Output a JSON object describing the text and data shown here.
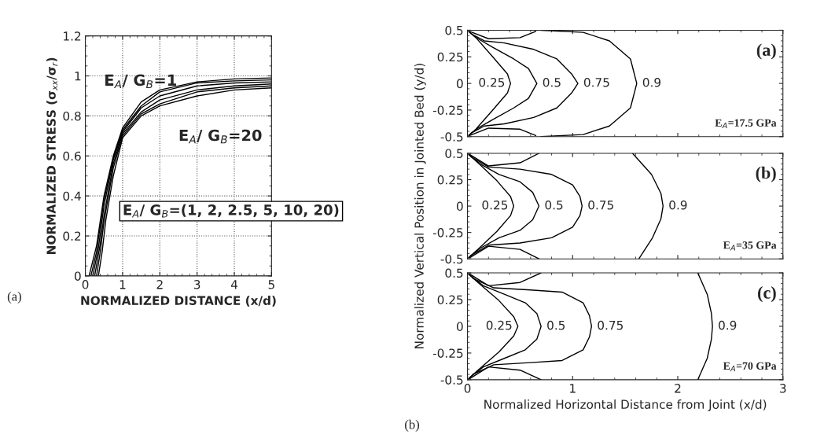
{
  "chart_data": [
    {
      "type": "line",
      "xlabel": "NORMALIZED DISTANCE (x/d)",
      "ylabel": "NORMALIZED STRESS (σ$_{xx}$/σ$_{r}$)",
      "xlim": [
        0,
        5
      ],
      "ylim": [
        0,
        1.2
      ],
      "xticks": [
        0,
        1,
        2,
        3,
        4,
        5
      ],
      "yticks": [
        0,
        0.2,
        0.4,
        0.6,
        0.8,
        1,
        1.2
      ],
      "grid": true,
      "legend": false,
      "annotations": [
        "E$_{A}$/ G$_{B}$=1",
        "E$_{A}$/ G$_{B}$=20",
        "E$_{A}$/ G$_{B}$=(1, 2, 2.5, 5, 10, 20)",
        "(a)"
      ],
      "series": [
        {
          "color": "#000000",
          "x": [
            0.1,
            0.3,
            0.5,
            0.75,
            1,
            1.5,
            2,
            3,
            4,
            5
          ],
          "values": [
            0,
            0.15,
            0.4,
            0.6,
            0.74,
            0.87,
            0.93,
            0.97,
            0.985,
            0.99
          ]
        },
        {
          "color": "#000000",
          "x": [
            0.15,
            0.3,
            0.5,
            0.75,
            1,
            1.5,
            2,
            3,
            4,
            5
          ],
          "values": [
            0,
            0.12,
            0.38,
            0.59,
            0.73,
            0.85,
            0.92,
            0.965,
            0.975,
            0.98
          ]
        },
        {
          "color": "#000000",
          "x": [
            0.2,
            0.35,
            0.5,
            0.75,
            1,
            1.5,
            2,
            3,
            4,
            5
          ],
          "values": [
            0,
            0.14,
            0.35,
            0.58,
            0.72,
            0.84,
            0.9,
            0.95,
            0.965,
            0.97
          ]
        },
        {
          "color": "#000000",
          "x": [
            0.25,
            0.4,
            0.5,
            0.75,
            1,
            1.5,
            2,
            3,
            4,
            5
          ],
          "values": [
            0,
            0.16,
            0.3,
            0.56,
            0.71,
            0.82,
            0.88,
            0.93,
            0.95,
            0.96
          ]
        },
        {
          "color": "#000000",
          "x": [
            0.3,
            0.4,
            0.5,
            0.75,
            1,
            1.5,
            2,
            3,
            4,
            5
          ],
          "values": [
            0,
            0.12,
            0.27,
            0.54,
            0.7,
            0.81,
            0.86,
            0.92,
            0.94,
            0.95
          ]
        },
        {
          "color": "#000000",
          "x": [
            0.35,
            0.45,
            0.55,
            0.75,
            1,
            1.5,
            2,
            3,
            4,
            5
          ],
          "values": [
            0,
            0.12,
            0.28,
            0.5,
            0.69,
            0.8,
            0.85,
            0.9,
            0.93,
            0.94
          ]
        }
      ]
    },
    {
      "type": "line",
      "xlim": [
        0,
        3
      ],
      "ylim": [
        -0.5,
        0.5
      ],
      "xticks": [
        0,
        1,
        2,
        3
      ],
      "yticks": [
        -0.5,
        -0.25,
        0,
        0.25,
        0.5
      ],
      "tick_labels": "y",
      "legend": false,
      "annotations": [
        "(a)",
        "E$_{A}$=17.5 GPa"
      ],
      "series": [
        {
          "name": "0.25",
          "color": "#000000",
          "x": [
            0.01,
            0.08,
            0.24,
            0.38,
            0.41,
            0.38,
            0.24,
            0.08,
            0.01
          ],
          "values": [
            0.49,
            0.43,
            0.25,
            0.09,
            0,
            -0.09,
            -0.25,
            -0.43,
            -0.49
          ]
        },
        {
          "name": "0.5",
          "color": "#000000",
          "x": [
            0.02,
            0.1,
            0.24,
            0.44,
            0.58,
            0.66,
            0.58,
            0.44,
            0.24,
            0.1,
            0.02
          ],
          "values": [
            0.48,
            0.42,
            0.34,
            0.23,
            0.14,
            0,
            -0.14,
            -0.23,
            -0.34,
            -0.42,
            -0.48
          ]
        },
        {
          "name": "0.75",
          "color": "#000000",
          "x": [
            0.03,
            0.16,
            0.35,
            0.63,
            0.85,
            0.99,
            1.05,
            0.99,
            0.85,
            0.63,
            0.35,
            0.16,
            0.03
          ],
          "values": [
            0.47,
            0.4,
            0.38,
            0.32,
            0.23,
            0.09,
            0,
            -0.09,
            -0.23,
            -0.32,
            -0.38,
            -0.4,
            -0.47
          ]
        },
        {
          "name": "0.9",
          "color": "#000000",
          "x": [
            0.7,
            1.1,
            1.35,
            1.55,
            1.61,
            1.55,
            1.35,
            1.1,
            0.7
          ],
          "values": [
            0.5,
            0.48,
            0.4,
            0.23,
            0,
            -0.23,
            -0.4,
            -0.48,
            -0.5
          ]
        },
        {
          "color": "#000000",
          "x": [
            0.02,
            0.2,
            0.5,
            0.65
          ],
          "values": [
            0.49,
            0.42,
            0.43,
            0.49
          ]
        },
        {
          "color": "#000000",
          "x": [
            0.02,
            0.2,
            0.5,
            0.65
          ],
          "values": [
            -0.49,
            -0.42,
            -0.43,
            -0.49
          ]
        }
      ]
    },
    {
      "type": "line",
      "xlim": [
        0,
        3
      ],
      "ylim": [
        -0.5,
        0.5
      ],
      "xticks": [
        0,
        1,
        2,
        3
      ],
      "yticks": [
        -0.5,
        -0.25,
        0,
        0.25,
        0.5
      ],
      "tick_labels": "y",
      "legend": false,
      "ylabel": "Normalized Vertical Position in Jointed Bed (y/d)",
      "annotations": [
        "(b)",
        "E$_{A}$=35 GPa"
      ],
      "series": [
        {
          "name": "0.25",
          "color": "#000000",
          "x": [
            0.01,
            0.1,
            0.28,
            0.41,
            0.44,
            0.41,
            0.28,
            0.1,
            0.01
          ],
          "values": [
            0.49,
            0.41,
            0.24,
            0.09,
            0,
            -0.09,
            -0.24,
            -0.41,
            -0.49
          ]
        },
        {
          "name": "0.5",
          "color": "#000000",
          "x": [
            0.02,
            0.12,
            0.3,
            0.5,
            0.62,
            0.68,
            0.62,
            0.5,
            0.3,
            0.12,
            0.02
          ],
          "values": [
            0.48,
            0.4,
            0.3,
            0.23,
            0.13,
            0,
            -0.13,
            -0.23,
            -0.3,
            -0.4,
            -0.48
          ]
        },
        {
          "name": "0.75",
          "color": "#000000",
          "x": [
            0.03,
            0.2,
            0.5,
            0.8,
            1.0,
            1.07,
            1.09,
            1.07,
            1.0,
            0.8,
            0.5,
            0.2,
            0.03
          ],
          "values": [
            0.47,
            0.37,
            0.35,
            0.3,
            0.2,
            0.09,
            0,
            -0.09,
            -0.2,
            -0.3,
            -0.35,
            -0.37,
            -0.47
          ]
        },
        {
          "name": "0.9",
          "color": "#000000",
          "x": [
            1.57,
            1.75,
            1.84,
            1.86,
            1.84,
            1.76,
            1.63
          ],
          "values": [
            0.5,
            0.3,
            0.12,
            0,
            -0.12,
            -0.3,
            -0.5
          ]
        },
        {
          "color": "#000000",
          "x": [
            0.02,
            0.2,
            0.5,
            0.68
          ],
          "values": [
            0.49,
            0.38,
            0.41,
            0.5
          ]
        },
        {
          "color": "#000000",
          "x": [
            0.02,
            0.2,
            0.5,
            0.68
          ],
          "values": [
            -0.49,
            -0.38,
            -0.41,
            -0.5
          ]
        }
      ]
    },
    {
      "type": "line",
      "xlim": [
        0,
        3
      ],
      "ylim": [
        -0.5,
        0.5
      ],
      "xticks": [
        0,
        1,
        2,
        3
      ],
      "yticks": [
        -0.5,
        -0.25,
        0,
        0.25,
        0.5
      ],
      "legend": false,
      "xlabel": "Normalized Horizontal Distance from Joint (x/d)",
      "annotations": [
        "(c)",
        "E$_{A}$=70 GPa",
        "(b)"
      ],
      "series": [
        {
          "name": "0.25",
          "color": "#000000",
          "x": [
            0.01,
            0.1,
            0.3,
            0.44,
            0.48,
            0.44,
            0.3,
            0.1,
            0.01
          ],
          "values": [
            0.49,
            0.41,
            0.24,
            0.09,
            0,
            -0.09,
            -0.24,
            -0.41,
            -0.49
          ]
        },
        {
          "name": "0.5",
          "color": "#000000",
          "x": [
            0.02,
            0.15,
            0.35,
            0.55,
            0.66,
            0.7,
            0.66,
            0.55,
            0.35,
            0.15,
            0.02
          ],
          "values": [
            0.48,
            0.38,
            0.3,
            0.22,
            0.12,
            0,
            -0.12,
            -0.22,
            -0.3,
            -0.38,
            -0.48
          ]
        },
        {
          "name": "0.75",
          "color": "#000000",
          "x": [
            0.05,
            0.25,
            0.6,
            0.9,
            1.1,
            1.16,
            1.18,
            1.16,
            1.1,
            0.9,
            0.6,
            0.25,
            0.05
          ],
          "values": [
            0.45,
            0.36,
            0.34,
            0.32,
            0.22,
            0.1,
            0,
            -0.1,
            -0.22,
            -0.32,
            -0.34,
            -0.36,
            -0.45
          ]
        },
        {
          "name": "0.9",
          "color": "#000000",
          "x": [
            2.19,
            2.28,
            2.32,
            2.33,
            2.32,
            2.28,
            2.19
          ],
          "values": [
            0.5,
            0.3,
            0.12,
            0,
            -0.12,
            -0.3,
            -0.5
          ]
        },
        {
          "color": "#000000",
          "x": [
            0.02,
            0.2,
            0.5,
            0.7
          ],
          "values": [
            0.49,
            0.38,
            0.41,
            0.5
          ]
        },
        {
          "color": "#000000",
          "x": [
            0.02,
            0.2,
            0.5,
            0.7
          ],
          "values": [
            -0.49,
            -0.38,
            -0.41,
            -0.5
          ]
        }
      ]
    }
  ]
}
